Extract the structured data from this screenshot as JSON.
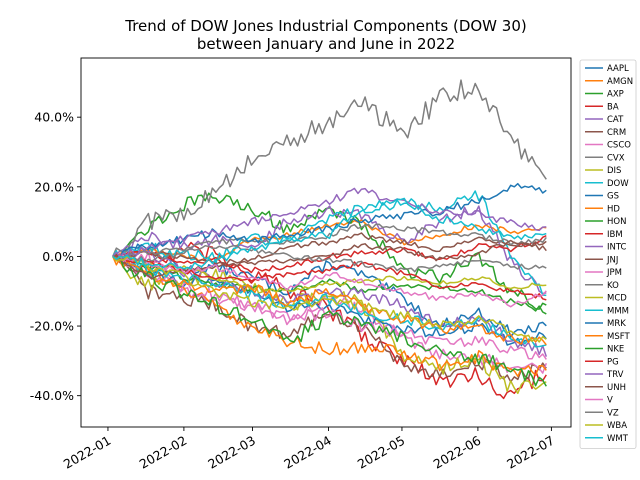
{
  "chart_data": {
    "type": "line",
    "title": "Trend of DOW Jones Industrial Components (DOW 30)",
    "subtitle": "between January and June in 2022",
    "xlabel": "",
    "ylabel": "",
    "x_range": [
      "2021-12-21",
      "2022-07-09"
    ],
    "x_tick_labels": [
      "2022-01",
      "2022-02",
      "2022-03",
      "2022-04",
      "2022-05",
      "2022-06",
      "2022-07"
    ],
    "x_tick_dates": [
      "2022-01-01",
      "2022-02-01",
      "2022-03-01",
      "2022-04-01",
      "2022-05-01",
      "2022-06-01",
      "2022-07-01"
    ],
    "y_unit": "percent",
    "ylim": [
      -49,
      57
    ],
    "y_ticks": [
      -40,
      -20,
      0,
      20,
      40
    ],
    "y_tick_labels": [
      "-40.0%",
      "-20.0%",
      "0.0%",
      "20.0%",
      "40.0%"
    ],
    "grid": false,
    "legend_position": "right-outside",
    "x_dates": [
      "2022-01-03",
      "2022-01-17",
      "2022-02-01",
      "2022-02-14",
      "2022-03-01",
      "2022-03-15",
      "2022-04-01",
      "2022-04-14",
      "2022-05-02",
      "2022-05-16",
      "2022-06-01",
      "2022-06-15",
      "2022-06-30"
    ],
    "series": [
      {
        "name": "AAPL",
        "color": "#1f77b4",
        "values": [
          0,
          3,
          -4,
          -3,
          -6,
          -10,
          -2,
          -5,
          -12,
          -20,
          -16,
          -22,
          -20
        ]
      },
      {
        "name": "AMGN",
        "color": "#ff7f0e",
        "values": [
          0,
          2,
          0,
          -1,
          5,
          6,
          9,
          10,
          4,
          6,
          9,
          7,
          9
        ]
      },
      {
        "name": "AXP",
        "color": "#2ca02c",
        "values": [
          0,
          8,
          15,
          17,
          14,
          8,
          13,
          10,
          -4,
          -6,
          0,
          -10,
          -15
        ]
      },
      {
        "name": "BA",
        "color": "#d62728",
        "values": [
          0,
          -4,
          2,
          0,
          -5,
          -10,
          -15,
          -22,
          -30,
          -36,
          -34,
          -40,
          -32
        ]
      },
      {
        "name": "CAT",
        "color": "#9467bd",
        "values": [
          0,
          6,
          3,
          5,
          2,
          10,
          13,
          12,
          4,
          10,
          14,
          -2,
          -12
        ]
      },
      {
        "name": "CRM",
        "color": "#8c564b",
        "values": [
          0,
          -10,
          -12,
          -14,
          -20,
          -22,
          -17,
          -20,
          -31,
          -34,
          -30,
          -35,
          -31
        ]
      },
      {
        "name": "CSCO",
        "color": "#e377c2",
        "values": [
          0,
          0,
          -10,
          -12,
          -14,
          -18,
          -12,
          -15,
          -24,
          -28,
          -29,
          -32,
          -32
        ]
      },
      {
        "name": "CVX",
        "color": "#7f7f7f",
        "values": [
          0,
          10,
          13,
          18,
          28,
          33,
          38,
          44,
          36,
          45,
          50,
          33,
          22
        ]
      },
      {
        "name": "DIS",
        "color": "#bcbd22",
        "values": [
          0,
          -8,
          -7,
          -5,
          -8,
          -14,
          -11,
          -13,
          -28,
          -32,
          -30,
          -38,
          -38
        ]
      },
      {
        "name": "DOW",
        "color": "#17becf",
        "values": [
          0,
          3,
          0,
          0,
          5,
          5,
          10,
          14,
          15,
          14,
          18,
          0,
          -12
        ]
      },
      {
        "name": "GS",
        "color": "#1f77b4",
        "values": [
          0,
          -5,
          -8,
          -6,
          -10,
          -15,
          -14,
          -18,
          -21,
          -22,
          -20,
          -25,
          -22
        ]
      },
      {
        "name": "HD",
        "color": "#ff7f0e",
        "values": [
          0,
          -4,
          -10,
          -14,
          -20,
          -24,
          -27,
          -26,
          -28,
          -31,
          -29,
          -33,
          -33
        ]
      },
      {
        "name": "HON",
        "color": "#2ca02c",
        "values": [
          0,
          -3,
          -6,
          -8,
          -9,
          -10,
          -7,
          -10,
          -8,
          -9,
          -10,
          -13,
          -16
        ]
      },
      {
        "name": "IBM",
        "color": "#d62728",
        "values": [
          0,
          1,
          -2,
          -1,
          -4,
          -3,
          0,
          1,
          2,
          -1,
          3,
          2,
          6
        ]
      },
      {
        "name": "INTC",
        "color": "#9467bd",
        "values": [
          0,
          2,
          -4,
          -7,
          -10,
          -13,
          -9,
          -11,
          -14,
          -20,
          -18,
          -24,
          -28
        ]
      },
      {
        "name": "JNJ",
        "color": "#8c564b",
        "values": [
          0,
          1,
          0,
          -2,
          -1,
          3,
          4,
          6,
          4,
          2,
          5,
          3,
          4
        ]
      },
      {
        "name": "JPM",
        "color": "#e377c2",
        "values": [
          0,
          -5,
          -9,
          -11,
          -14,
          -18,
          -16,
          -20,
          -22,
          -25,
          -24,
          -27,
          -29
        ]
      },
      {
        "name": "KO",
        "color": "#7f7f7f",
        "values": [
          0,
          1,
          2,
          4,
          5,
          4,
          6,
          9,
          8,
          7,
          6,
          4,
          5
        ]
      },
      {
        "name": "MCD",
        "color": "#bcbd22",
        "values": [
          0,
          -2,
          -3,
          -6,
          -9,
          -10,
          -8,
          -7,
          -6,
          -8,
          -6,
          -9,
          -8
        ]
      },
      {
        "name": "MMM",
        "color": "#17becf",
        "values": [
          0,
          -4,
          -6,
          -8,
          -11,
          -14,
          -12,
          -16,
          -18,
          -20,
          -18,
          -24,
          -27
        ]
      },
      {
        "name": "MRK",
        "color": "#1f77b4",
        "values": [
          0,
          3,
          5,
          7,
          4,
          6,
          8,
          10,
          12,
          13,
          16,
          20,
          19
        ]
      },
      {
        "name": "MSFT",
        "color": "#ff7f0e",
        "values": [
          0,
          -6,
          -8,
          -10,
          -9,
          -13,
          -10,
          -14,
          -18,
          -21,
          -20,
          -24,
          -24
        ]
      },
      {
        "name": "NKE",
        "color": "#2ca02c",
        "values": [
          0,
          -6,
          -10,
          -14,
          -18,
          -25,
          -17,
          -20,
          -24,
          -27,
          -29,
          -32,
          -38
        ]
      },
      {
        "name": "PG",
        "color": "#d62728",
        "values": [
          0,
          -2,
          -4,
          -6,
          -7,
          -5,
          -4,
          -2,
          -5,
          -9,
          -8,
          -10,
          -12
        ]
      },
      {
        "name": "TRV",
        "color": "#9467bd",
        "values": [
          0,
          2,
          5,
          7,
          10,
          12,
          16,
          19,
          15,
          13,
          12,
          10,
          8
        ]
      },
      {
        "name": "UNH",
        "color": "#8c564b",
        "values": [
          0,
          -6,
          -4,
          -3,
          -2,
          -1,
          0,
          3,
          2,
          -1,
          1,
          4,
          2
        ]
      },
      {
        "name": "V",
        "color": "#e377c2",
        "values": [
          0,
          -2,
          -4,
          -3,
          -6,
          -9,
          -5,
          -7,
          -10,
          -12,
          -11,
          -14,
          -10
        ]
      },
      {
        "name": "VZ",
        "color": "#7f7f7f",
        "values": [
          0,
          -1,
          1,
          3,
          2,
          0,
          -1,
          -2,
          -4,
          -3,
          -1,
          -3,
          -3
        ]
      },
      {
        "name": "WBA",
        "color": "#bcbd22",
        "values": [
          0,
          -3,
          -6,
          -10,
          -13,
          -15,
          -12,
          -14,
          -17,
          -20,
          -18,
          -22,
          -25
        ]
      },
      {
        "name": "WMT",
        "color": "#17becf",
        "values": [
          0,
          -2,
          -3,
          -1,
          2,
          5,
          6,
          14,
          16,
          11,
          8,
          5,
          7
        ]
      }
    ]
  }
}
